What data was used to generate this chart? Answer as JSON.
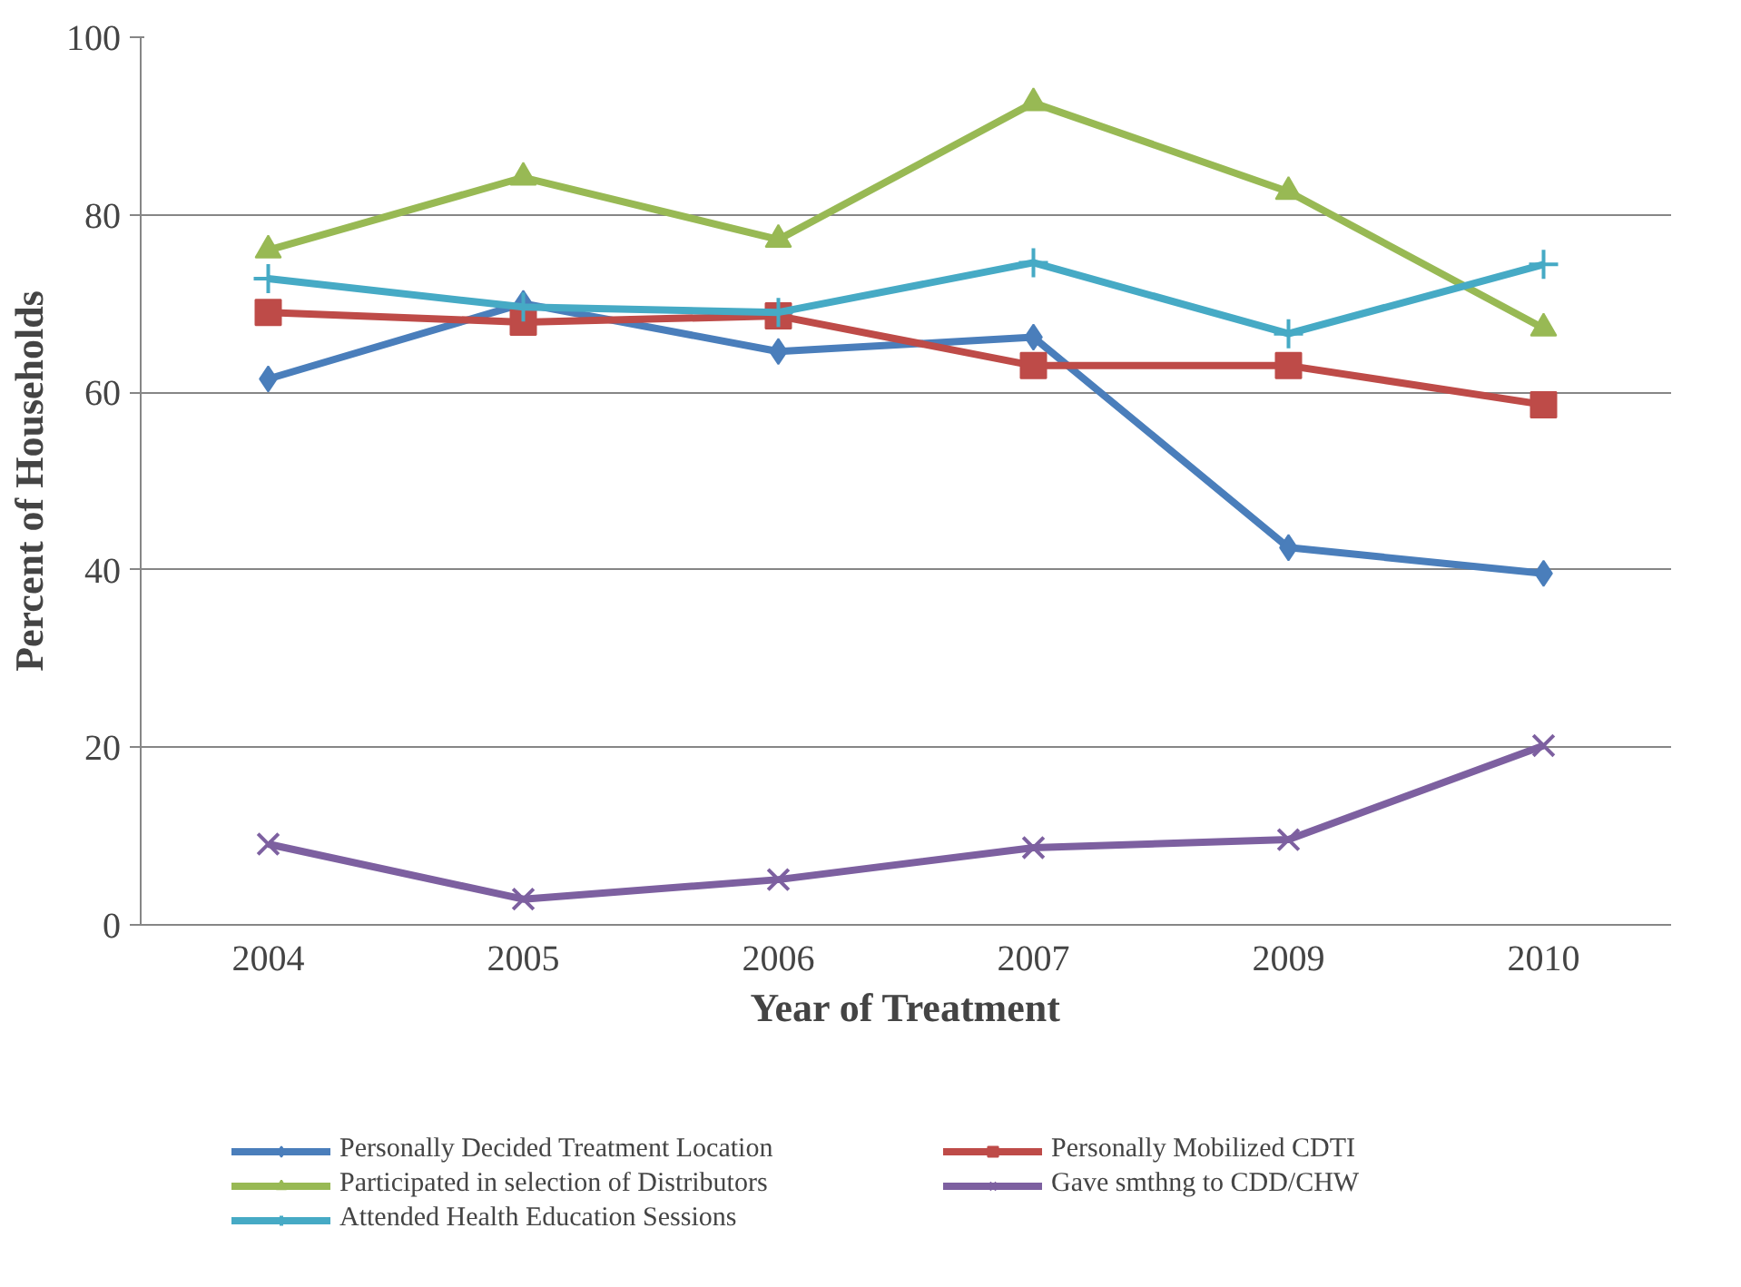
{
  "chart_data": {
    "type": "line",
    "xlabel": "Year of Treatment",
    "ylabel": "Percent of Households",
    "categories": [
      "2004",
      "2005",
      "2006",
      "2007",
      "2009",
      "2010"
    ],
    "ylim": [
      0,
      100
    ],
    "yticks": [
      0,
      20,
      40,
      60,
      80,
      100
    ],
    "grid": "y",
    "legend": "bottom",
    "line_style": "solid",
    "series": [
      {
        "name": "Personally Decided Treatment Location",
        "color": "#4a7ebb",
        "marker": "diamond",
        "values": [
          61.5,
          70,
          64.6,
          66.2,
          42.5,
          39.6
        ]
      },
      {
        "name": "Personally Mobilized CDTI",
        "color": "#be4b48",
        "marker": "square",
        "values": [
          69,
          67.9,
          68.6,
          63,
          63,
          58.6
        ]
      },
      {
        "name": "Participated in selection of Distributors",
        "color": "#98b954",
        "marker": "triangle",
        "values": [
          76,
          84.2,
          77.2,
          92.6,
          82.6,
          67.2
        ]
      },
      {
        "name": "Gave smthng to CDD/CHW",
        "color": "#7d60a0",
        "marker": "x",
        "values": [
          9.1,
          2.9,
          5.1,
          8.7,
          9.6,
          20.2
        ]
      },
      {
        "name": "Attended Health Education Sessions",
        "color": "#46aac5",
        "marker": "cross",
        "values": [
          72.8,
          69.6,
          69,
          74.6,
          66.6,
          74.4
        ]
      }
    ]
  }
}
